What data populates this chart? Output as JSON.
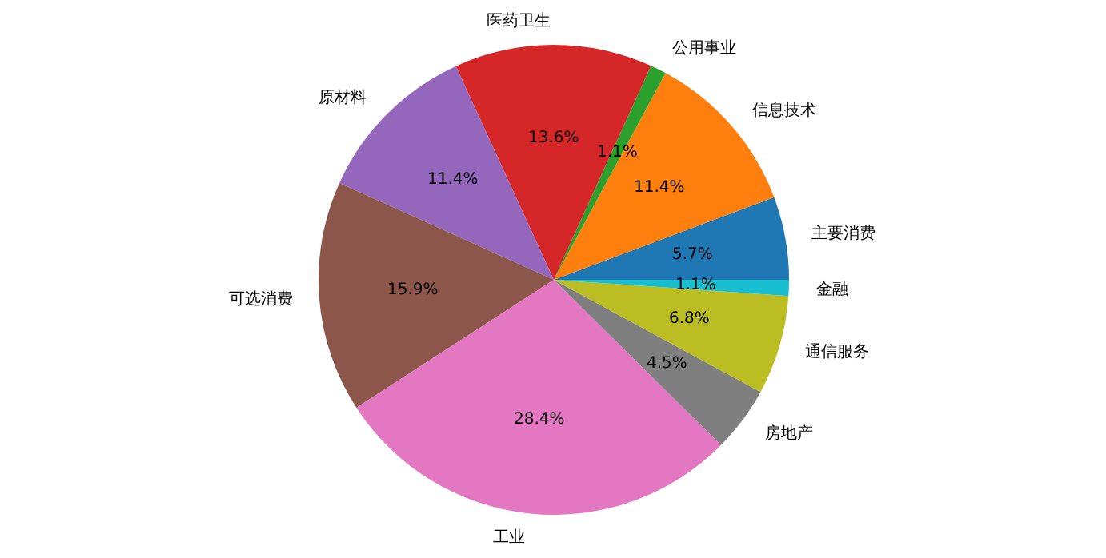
{
  "chart_data": {
    "type": "pie",
    "categories": [
      "主要消费",
      "信息技术",
      "公用事业",
      "医药卫生",
      "原材料",
      "可选消费",
      "工业",
      "房地产",
      "通信服务",
      "金融"
    ],
    "values": [
      5.7,
      11.4,
      1.1,
      13.6,
      11.4,
      15.9,
      28.4,
      4.5,
      6.8,
      1.1
    ],
    "colors": [
      "#1f77b4",
      "#ff7f0e",
      "#2ca02c",
      "#d62728",
      "#9467bd",
      "#8c564b",
      "#e377c2",
      "#7f7f7f",
      "#bcbd22",
      "#17becf"
    ],
    "value_labels": [
      "5.7%",
      "11.4%",
      "1.1%",
      "13.6%",
      "11.4%",
      "15.9%",
      "28.4%",
      "4.5%",
      "6.8%",
      "1.1%"
    ],
    "legend": false
  }
}
